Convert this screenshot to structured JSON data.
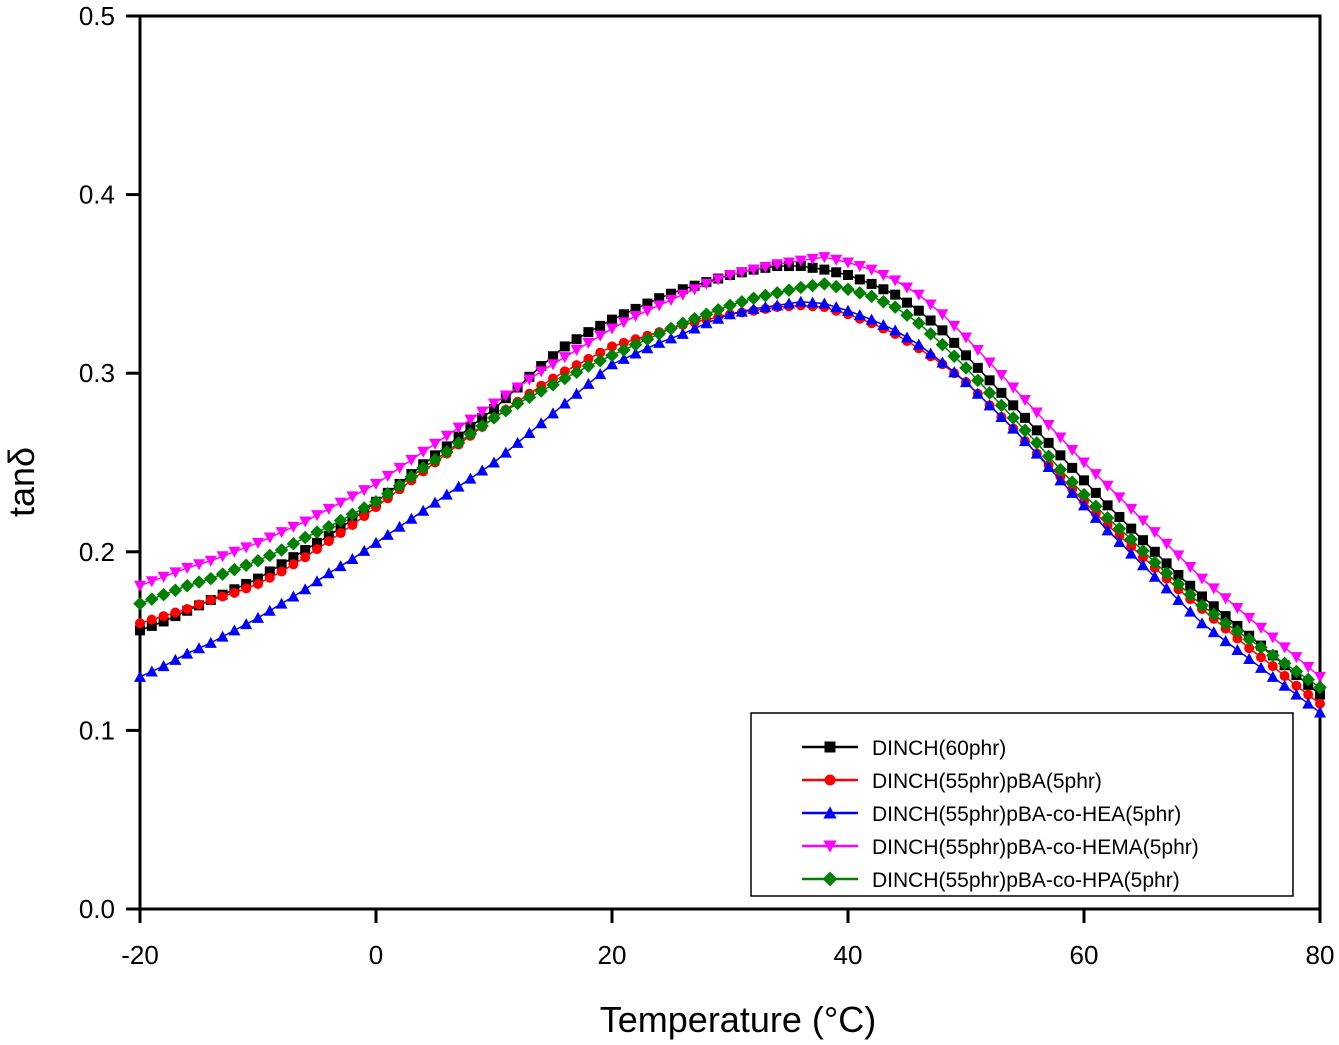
{
  "chart_data": {
    "type": "line",
    "title": "",
    "xlabel": "Temperature (°C)",
    "ylabel": "tanδ",
    "xlim": [
      -20,
      80
    ],
    "ylim": [
      0.0,
      0.5
    ],
    "grid": false,
    "legend_position": "bottom-right",
    "x_ticks": [
      "-20",
      "0",
      "20",
      "40",
      "60",
      "80"
    ],
    "y_ticks": [
      "0.0",
      "0.1",
      "0.2",
      "0.3",
      "0.4",
      "0.5"
    ],
    "x": [
      -20,
      -18,
      -16,
      -14,
      -12,
      -10,
      -8,
      -6,
      -4,
      -2,
      0,
      2,
      4,
      6,
      8,
      10,
      12,
      14,
      16,
      18,
      20,
      22,
      24,
      26,
      28,
      30,
      32,
      34,
      36,
      38,
      40,
      42,
      44,
      46,
      48,
      50,
      52,
      54,
      56,
      58,
      60,
      62,
      64,
      66,
      68,
      70,
      72,
      74,
      76,
      78,
      80
    ],
    "series": [
      {
        "name": "DINCH(60phr)",
        "color": "#000000",
        "marker": "square",
        "values": [
          0.156,
          0.161,
          0.167,
          0.173,
          0.179,
          0.185,
          0.193,
          0.201,
          0.209,
          0.218,
          0.228,
          0.238,
          0.249,
          0.259,
          0.27,
          0.28,
          0.292,
          0.304,
          0.315,
          0.323,
          0.33,
          0.336,
          0.342,
          0.347,
          0.351,
          0.355,
          0.358,
          0.36,
          0.36,
          0.358,
          0.355,
          0.35,
          0.344,
          0.335,
          0.324,
          0.31,
          0.296,
          0.282,
          0.268,
          0.254,
          0.24,
          0.226,
          0.213,
          0.2,
          0.187,
          0.175,
          0.164,
          0.153,
          0.142,
          0.131,
          0.12
        ]
      },
      {
        "name": "DINCH(55phr)pBA(5phr)",
        "color": "#ff0000",
        "marker": "circle",
        "values": [
          0.16,
          0.164,
          0.168,
          0.173,
          0.177,
          0.182,
          0.189,
          0.197,
          0.206,
          0.215,
          0.225,
          0.235,
          0.245,
          0.255,
          0.265,
          0.275,
          0.284,
          0.293,
          0.301,
          0.308,
          0.315,
          0.319,
          0.323,
          0.327,
          0.33,
          0.333,
          0.335,
          0.337,
          0.338,
          0.337,
          0.333,
          0.328,
          0.322,
          0.314,
          0.305,
          0.295,
          0.282,
          0.269,
          0.255,
          0.242,
          0.228,
          0.215,
          0.203,
          0.191,
          0.179,
          0.168,
          0.157,
          0.146,
          0.136,
          0.125,
          0.115
        ]
      },
      {
        "name": "DINCH(55phr)pBA-co-HEA(5phr)",
        "color": "#0000ff",
        "marker": "triangle-up",
        "values": [
          0.13,
          0.136,
          0.143,
          0.149,
          0.156,
          0.163,
          0.171,
          0.179,
          0.188,
          0.196,
          0.205,
          0.214,
          0.223,
          0.232,
          0.241,
          0.25,
          0.261,
          0.272,
          0.283,
          0.294,
          0.305,
          0.311,
          0.317,
          0.322,
          0.328,
          0.333,
          0.336,
          0.338,
          0.34,
          0.339,
          0.335,
          0.33,
          0.324,
          0.316,
          0.306,
          0.295,
          0.282,
          0.269,
          0.255,
          0.24,
          0.226,
          0.212,
          0.199,
          0.186,
          0.173,
          0.16,
          0.15,
          0.14,
          0.13,
          0.12,
          0.11
        ]
      },
      {
        "name": "DINCH(55phr)pBA-co-HEMA(5phr)",
        "color": "#ff00ff",
        "marker": "triangle-down",
        "values": [
          0.181,
          0.186,
          0.191,
          0.195,
          0.2,
          0.205,
          0.211,
          0.217,
          0.224,
          0.231,
          0.238,
          0.247,
          0.256,
          0.265,
          0.274,
          0.283,
          0.292,
          0.301,
          0.309,
          0.317,
          0.325,
          0.332,
          0.338,
          0.344,
          0.35,
          0.355,
          0.358,
          0.361,
          0.363,
          0.365,
          0.362,
          0.358,
          0.352,
          0.344,
          0.333,
          0.32,
          0.306,
          0.292,
          0.278,
          0.264,
          0.25,
          0.237,
          0.224,
          0.211,
          0.198,
          0.185,
          0.174,
          0.163,
          0.152,
          0.141,
          0.13
        ]
      },
      {
        "name": "DINCH(55phr)pBA-co-HPA(5phr)",
        "color": "#008000",
        "marker": "diamond",
        "values": [
          0.171,
          0.176,
          0.181,
          0.185,
          0.19,
          0.195,
          0.201,
          0.208,
          0.214,
          0.221,
          0.228,
          0.237,
          0.247,
          0.256,
          0.266,
          0.275,
          0.283,
          0.29,
          0.297,
          0.304,
          0.31,
          0.316,
          0.322,
          0.328,
          0.333,
          0.338,
          0.342,
          0.345,
          0.348,
          0.35,
          0.347,
          0.343,
          0.337,
          0.328,
          0.316,
          0.303,
          0.289,
          0.275,
          0.261,
          0.246,
          0.232,
          0.219,
          0.207,
          0.194,
          0.182,
          0.17,
          0.16,
          0.151,
          0.142,
          0.133,
          0.124
        ]
      }
    ]
  }
}
